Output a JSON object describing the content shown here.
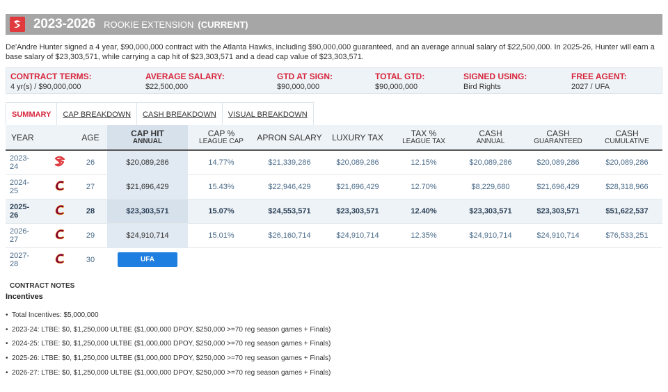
{
  "header": {
    "years": "2023-2026",
    "type": "ROOKIE EXTENSION",
    "status": "(CURRENT)"
  },
  "summary": "De'Andre Hunter signed a 4 year, $90,000,000 contract with the Atlanta Hawks, including $90,000,000 guaranteed, and an average annual salary of $22,500,000. In 2025-26, Hunter will earn a base salary of $23,303,571, while carrying a cap hit of $23,303,571 and a dead cap value of $23,303,571.",
  "terms": [
    {
      "label": "CONTRACT TERMS:",
      "value": "4 yr(s) / $90,000,000"
    },
    {
      "label": "AVERAGE SALARY:",
      "value": "$22,500,000"
    },
    {
      "label": "GTD AT SIGN:",
      "value": "$90,000,000"
    },
    {
      "label": "TOTAL GTD:",
      "value": "$90,000,000"
    },
    {
      "label": "SIGNED USING:",
      "value": "Bird Rights"
    },
    {
      "label": "FREE AGENT:",
      "value": "2027 / UFA"
    }
  ],
  "tabs": [
    "SUMMARY",
    "CAP BREAKDOWN",
    "CASH BREAKDOWN",
    "VISUAL BREAKDOWN"
  ],
  "columns": [
    {
      "main": "YEAR",
      "sub": ""
    },
    {
      "main": "",
      "sub": ""
    },
    {
      "main": "AGE",
      "sub": ""
    },
    {
      "main": "CAP HIT",
      "sub": "ANNUAL"
    },
    {
      "main": "CAP %",
      "sub": "LEAGUE CAP"
    },
    {
      "main": "APRON SALARY",
      "sub": ""
    },
    {
      "main": "LUXURY TAX",
      "sub": ""
    },
    {
      "main": "TAX %",
      "sub": "LEAGUE TAX"
    },
    {
      "main": "CASH",
      "sub": "ANNUAL"
    },
    {
      "main": "CASH",
      "sub": "GUARANTEED"
    },
    {
      "main": "CASH",
      "sub": "CUMULATIVE"
    }
  ],
  "rows": [
    {
      "year1": "2023-",
      "year2": "24",
      "team": "hawks",
      "age": "26",
      "cap_hit": "$20,089,286",
      "cap_pct": "14.77%",
      "apron": "$21,339,286",
      "lux_tax": "$20,089,286",
      "tax_pct": "12.15%",
      "cash_annual": "$20,089,286",
      "cash_gtd": "$20,089,286",
      "cash_cum": "$20,089,286"
    },
    {
      "year1": "2024-",
      "year2": "25",
      "team": "cavaliers",
      "age": "27",
      "cap_hit": "$21,696,429",
      "cap_pct": "15.43%",
      "apron": "$22,946,429",
      "lux_tax": "$21,696,429",
      "tax_pct": "12.70%",
      "cash_annual": "$8,229,680",
      "cash_gtd": "$21,696,429",
      "cash_cum": "$28,318,966"
    },
    {
      "year1": "2025-",
      "year2": "26",
      "team": "cavaliers",
      "age": "28",
      "cap_hit": "$23,303,571",
      "cap_pct": "15.07%",
      "apron": "$24,553,571",
      "lux_tax": "$23,303,571",
      "tax_pct": "12.40%",
      "cash_annual": "$23,303,571",
      "cash_gtd": "$23,303,571",
      "cash_cum": "$51,622,537"
    },
    {
      "year1": "2026-",
      "year2": "27",
      "team": "cavaliers",
      "age": "29",
      "cap_hit": "$24,910,714",
      "cap_pct": "15.01%",
      "apron": "$26,160,714",
      "lux_tax": "$24,910,714",
      "tax_pct": "12.35%",
      "cash_annual": "$24,910,714",
      "cash_gtd": "$24,910,714",
      "cash_cum": "$76,533,251"
    }
  ],
  "ufa_row": {
    "year1": "2027-",
    "year2": "28",
    "team": "cavaliers",
    "age": "30",
    "badge": "UFA"
  },
  "notes": {
    "title": "CONTRACT NOTES",
    "subtitle": "Incentives",
    "items": [
      "Total Incentives: $5,000,000",
      "2023-24: LTBE: $0, $1,250,000 ULTBE ($1,000,000 DPOY, $250,000 >=70 reg season games + Finals)",
      "2024-25: LTBE: $0, $1,250,000 ULTBE ($1,000,000 DPOY, $250,000 >=70 reg season games + Finals)",
      "2025-26: LTBE: $0, $1,250,000 ULTBE ($1,000,000 DPOY, $250,000 >=70 reg season games + Finals)",
      "2026-27: LTBE: $0, $1,250,000 ULTBE ($1,000,000 DPOY, $250,000 >=70 reg season games + Finals)"
    ]
  },
  "colors": {
    "accent_red": "#d7263d",
    "hawks_red": "#e03a3e",
    "cavs_wine": "#860038",
    "ufa_blue": "#1f7fe0",
    "header_gray": "#a6a6a6"
  },
  "icons": {
    "hawks": "hawks-logo-icon",
    "cavaliers": "cavaliers-logo-icon"
  }
}
